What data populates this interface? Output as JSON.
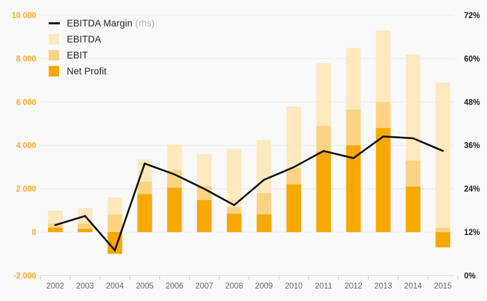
{
  "chart_data": {
    "type": "bar",
    "subtype": "overlapping-bars-with-line",
    "title": "",
    "categories": [
      "2002",
      "2003",
      "2004",
      "2005",
      "2006",
      "2007",
      "2008",
      "2009",
      "2010",
      "2011",
      "2012",
      "2013",
      "2014",
      "2015"
    ],
    "series": [
      {
        "name": "EBITDA Margin",
        "suffix": "(rhs)",
        "type": "line",
        "axis": "right",
        "color": "#0b0b0b",
        "values": [
          14,
          16.5,
          7,
          31,
          28,
          24,
          19.5,
          26.5,
          30,
          34.5,
          32.5,
          38.5,
          38,
          34.5
        ]
      },
      {
        "name": "EBITDA",
        "type": "bar",
        "axis": "left",
        "color": "#fce9be",
        "values": [
          1000,
          1100,
          1600,
          3350,
          4050,
          3600,
          3830,
          4250,
          5800,
          7800,
          8500,
          9300,
          8200,
          6900
        ]
      },
      {
        "name": "EBIT",
        "type": "bar",
        "axis": "left",
        "color": "#fbd382",
        "values": [
          400,
          400,
          820,
          2330,
          2850,
          2100,
          1150,
          1800,
          2950,
          4900,
          5650,
          6000,
          3300,
          200
        ]
      },
      {
        "name": "Net Profit",
        "type": "bar",
        "axis": "left",
        "color": "#f7a801",
        "values": [
          200,
          150,
          -1000,
          1750,
          2050,
          1480,
          850,
          820,
          2200,
          3700,
          4000,
          4800,
          2100,
          -700
        ]
      }
    ],
    "left_axis": {
      "min": -2000,
      "max": 10000,
      "step": 2000,
      "tick_labels": [
        "10 000",
        "8 000",
        "6 000",
        "4 000",
        "2 000",
        "0",
        "-2 000"
      ],
      "label_color": "#f5a81e"
    },
    "right_axis": {
      "min": 0,
      "max": 72,
      "step": 12,
      "tick_labels": [
        "72%",
        "60%",
        "48%",
        "36%",
        "24%",
        "12%",
        "0%"
      ],
      "label_color": "#1b1b1b"
    },
    "x_axis": {
      "label_color": "#63666a"
    },
    "grid": {
      "on": true,
      "color": "#e9eaec",
      "baseline_color": "#d6dae1",
      "tick_color": "#c7ccd6"
    },
    "legend_position": "top-left",
    "background": "#f9f9fa"
  },
  "legend": {
    "items": [
      {
        "label": "EBITDA Margin",
        "suffix": "(rhs)",
        "swatch": "line",
        "swatch_color": "#0b0b0b"
      },
      {
        "label": "EBITDA",
        "suffix": "",
        "swatch": "square",
        "swatch_color": "#fce9be"
      },
      {
        "label": "EBIT",
        "suffix": "",
        "swatch": "square",
        "swatch_color": "#fbd382"
      },
      {
        "label": "Net Profit",
        "suffix": "",
        "swatch": "square",
        "swatch_color": "#f7a801"
      }
    ]
  }
}
